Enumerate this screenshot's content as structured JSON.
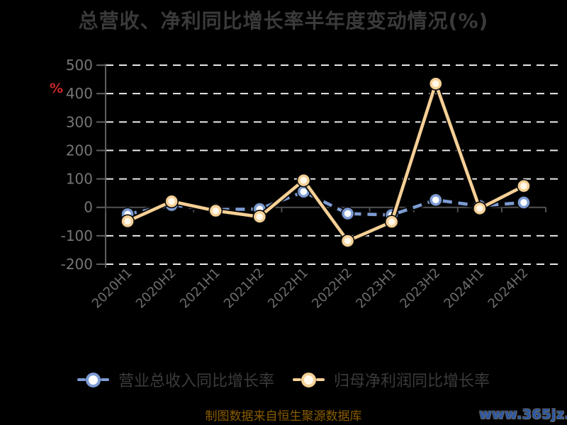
{
  "page": {
    "title": "总营收、净利同比增长率半年度变动情况(%)",
    "y_axis_unit": "%",
    "source_note": "制图数据来自恒生聚源数据库",
    "watermark": "www.365jz.com"
  },
  "colors": {
    "background": "#000000",
    "title_text": "#3a3a3a",
    "axis_line": "#5f5f5f",
    "zero_axis_line": "#515151",
    "grid_line": "#e8e8e8",
    "y_tick_label": "#767676",
    "x_tick_label": "#6d6d6d",
    "y_unit_red": "#cb2727",
    "legend_text": "#3b3b3b",
    "source_text": "#8a5c00",
    "watermark_text": "#2a57a5",
    "revenue_series": "#7d9cd4",
    "profit_series": "#f6d096",
    "marker_fill_revenue": "#ffffff",
    "marker_fill_profit": "#fff8ea"
  },
  "chart_data": {
    "type": "line",
    "title": "总营收、净利同比增长率半年度变动情况(%)",
    "categories": [
      "2020H1",
      "2020H2",
      "2021H1",
      "2021H2",
      "2022H1",
      "2022H2",
      "2023H1",
      "2023H2",
      "2024H1",
      "2024H2"
    ],
    "series": [
      {
        "name": "营业总收入同比增长率",
        "color": "#7d9cd4",
        "line_style": "dashed",
        "marker": "circle",
        "values": [
          -24,
          8,
          -8,
          -6,
          55,
          -22,
          -27,
          26,
          5,
          17
        ]
      },
      {
        "name": "归母净利润同比增长率",
        "color": "#f6d096",
        "line_style": "solid",
        "marker": "circle",
        "values": [
          -49,
          21,
          -12,
          -33,
          95,
          -118,
          -51,
          435,
          -4,
          75
        ]
      }
    ],
    "xlabel": "",
    "ylabel": "%",
    "ylim": [
      -200,
      500
    ],
    "yticks": [
      500,
      400,
      300,
      200,
      100,
      0,
      -100,
      -200
    ],
    "grid": "horizontal-dashed",
    "x_axis_on_zero": true,
    "legend_position": "bottom"
  }
}
